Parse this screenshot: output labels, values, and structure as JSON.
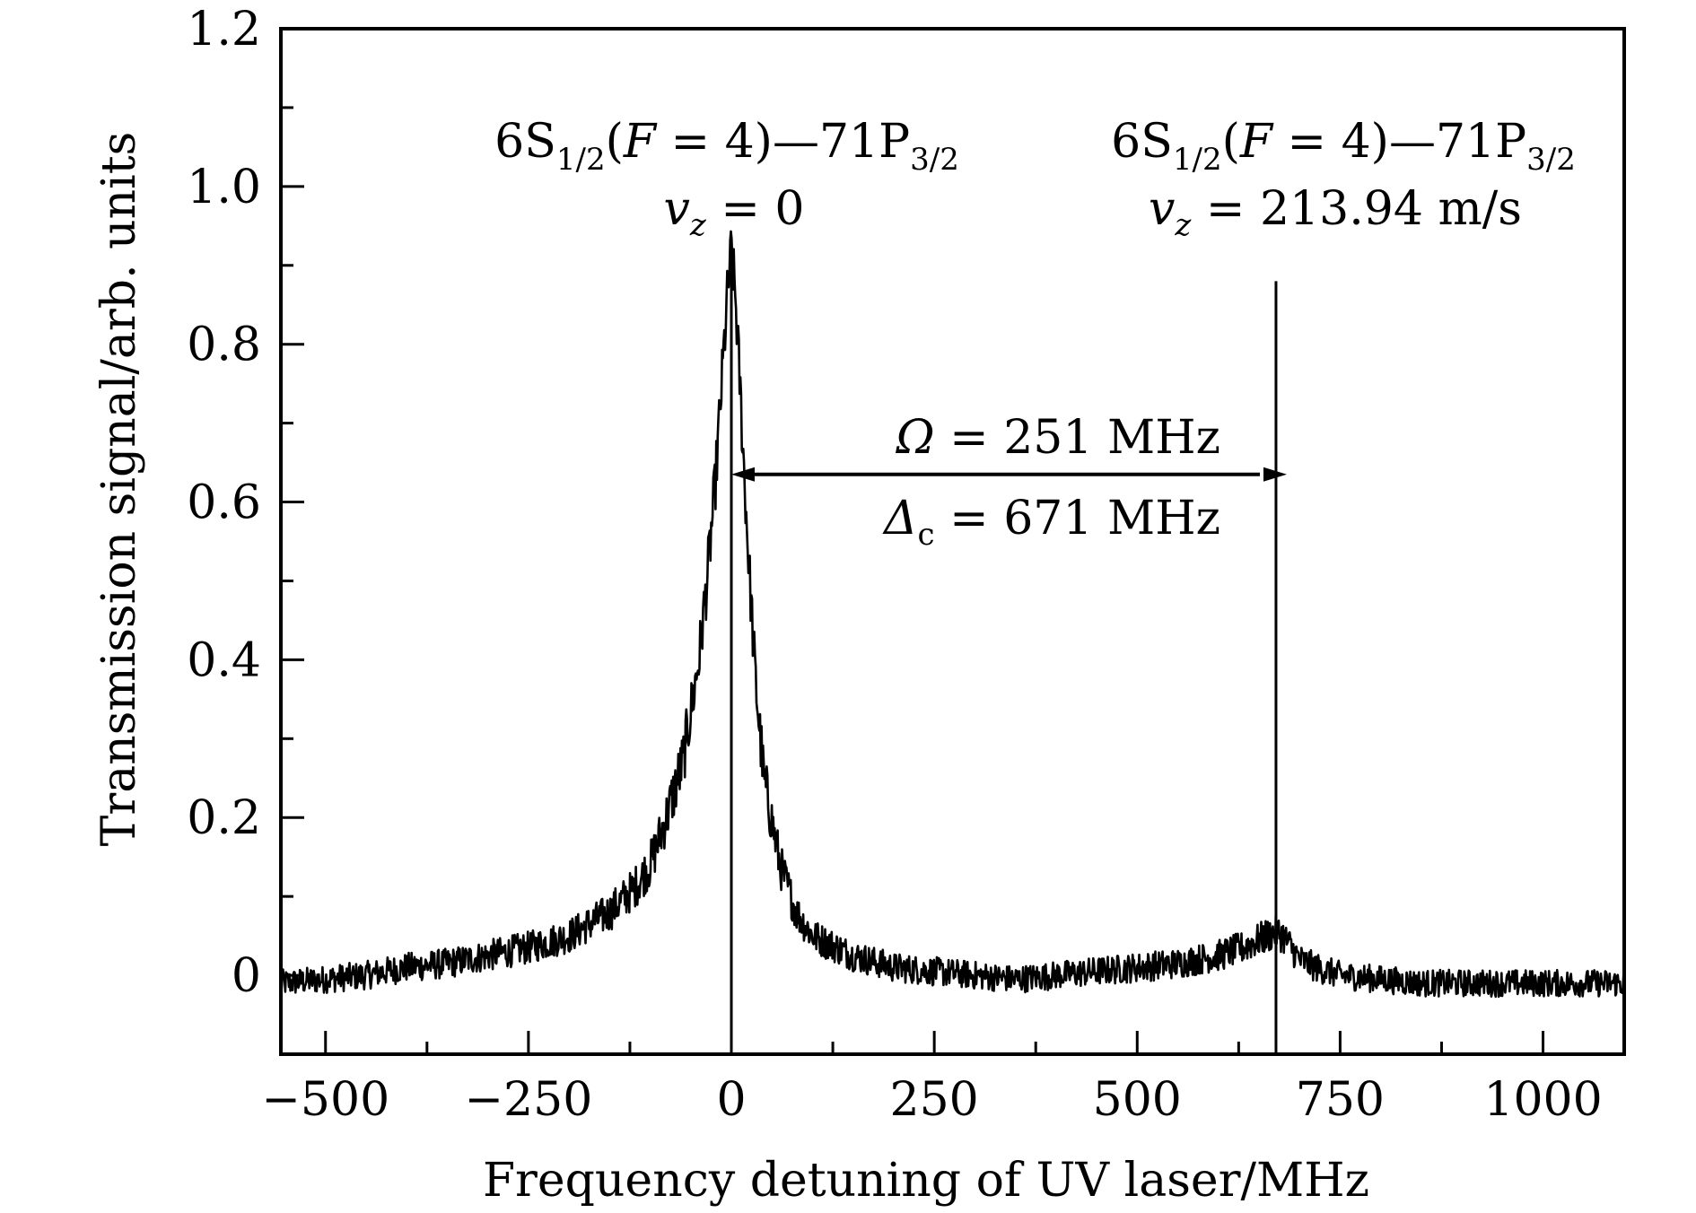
{
  "chart_data": {
    "type": "line",
    "xlabel": "Frequency detuning of UV laser/MHz",
    "ylabel": "Transmission signal/arb. units",
    "xlim": [
      -555,
      1100
    ],
    "ylim": [
      -0.1,
      1.2
    ],
    "x_major_ticks": [
      -500,
      -250,
      0,
      250,
      500,
      750,
      1000
    ],
    "x_tick_labels": [
      "−500",
      "−250",
      "0",
      "250",
      "500",
      "750",
      "1000"
    ],
    "y_major_ticks": [
      0,
      0.2,
      0.4,
      0.6,
      0.8,
      1.0,
      1.2
    ],
    "y_tick_labels": [
      "0",
      "0.2",
      "0.4",
      "0.6",
      "0.8",
      "1.0",
      "1.2"
    ],
    "grid": false,
    "legend": "none",
    "series": [
      {
        "x": [
          -555,
          -500,
          -450,
          -400,
          -350,
          -300,
          -250,
          -200,
          -150,
          -120,
          -100,
          -80,
          -60,
          -40,
          -30,
          -20,
          -10,
          -5,
          0,
          5,
          10,
          20,
          30,
          40,
          60,
          80,
          100,
          150,
          200,
          250,
          300,
          350,
          400,
          450,
          500,
          550,
          600,
          630,
          650,
          660,
          671,
          680,
          690,
          700,
          720,
          750,
          800,
          850,
          900,
          950,
          1000,
          1050,
          1100
        ],
        "y": [
          -0.01,
          -0.005,
          0.0,
          0.01,
          0.015,
          0.025,
          0.035,
          0.05,
          0.08,
          0.11,
          0.14,
          0.2,
          0.27,
          0.4,
          0.5,
          0.62,
          0.78,
          0.86,
          0.92,
          0.86,
          0.76,
          0.55,
          0.37,
          0.25,
          0.14,
          0.08,
          0.05,
          0.025,
          0.01,
          0.005,
          0.0,
          -0.005,
          0.0,
          0.005,
          0.01,
          0.015,
          0.025,
          0.035,
          0.045,
          0.05,
          0.055,
          0.05,
          0.035,
          0.02,
          0.01,
          0.0,
          -0.005,
          -0.01,
          -0.01,
          -0.01,
          -0.01,
          -0.01,
          -0.01
        ]
      }
    ],
    "vertical_markers": [
      0,
      671
    ],
    "arrow": {
      "x_from": 0,
      "x_to": 671,
      "y": 0.635
    },
    "annotations": {
      "peak1_line1": {
        "a": "6S",
        "b": "1/2",
        "c": "(",
        "d": "F",
        "e": " = 4)—71P",
        "f": "3/2"
      },
      "peak1_line2": {
        "a": "v",
        "b": "z",
        "c": " = 0"
      },
      "peak2_line1": {
        "a": "6S",
        "b": "1/2",
        "c": "(",
        "d": "F",
        "e": " = 4)—71P",
        "f": "3/2"
      },
      "peak2_line2": {
        "a": "v",
        "b": "z",
        "c": " = 213.94 m/s"
      },
      "omega": {
        "a": "Ω",
        "b": " = 251 MHz"
      },
      "delta": {
        "a": "Δ",
        "b": "c",
        "c": " = 671 MHz"
      }
    }
  }
}
